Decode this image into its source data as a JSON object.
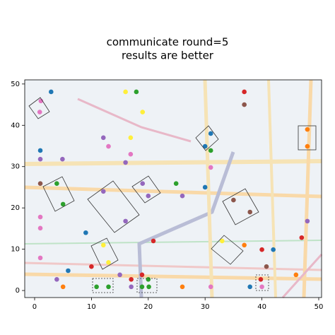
{
  "chart_data": {
    "type": "scatter",
    "title": [
      "communicate round=5",
      "results are better"
    ],
    "x": [
      1.1,
      0.9,
      2.9,
      16.0,
      17.9,
      19.0,
      36.9,
      36.9,
      12.1,
      16.9,
      13.0,
      16.9,
      1.0,
      4.9,
      1.0,
      31.0,
      30.0,
      31.0,
      48.0,
      48.0,
      16.0,
      31.0,
      1.0,
      3.9,
      5.0,
      12.1,
      19.0,
      20.0,
      24.9,
      26.0,
      30.0,
      35.0,
      37.9,
      1.0,
      1.0,
      16.0,
      9.0,
      48.0,
      47.0,
      12.1,
      20.9,
      33.0,
      36.9,
      40.0,
      42.0,
      1.0,
      10.0,
      13.0,
      5.9,
      40.8,
      3.9,
      15.0,
      18.9,
      20.0,
      17.0,
      46.0,
      39.8,
      5.0,
      10.9,
      13.0,
      17.0,
      18.9,
      20.1,
      26.0,
      31.0,
      37.9,
      40.0
    ],
    "values": [
      45.9,
      43.2,
      48.1,
      48.1,
      48.1,
      43.2,
      48.1,
      45.0,
      37.0,
      37.0,
      34.9,
      33.0,
      33.9,
      31.8,
      31.8,
      38.0,
      34.9,
      33.9,
      39.0,
      34.9,
      31.0,
      29.8,
      25.9,
      25.9,
      20.9,
      24.0,
      25.9,
      22.9,
      25.9,
      22.9,
      25.0,
      21.9,
      19.0,
      17.8,
      15.1,
      16.8,
      14.0,
      16.8,
      12.8,
      11.0,
      12.0,
      12.0,
      11.0,
      9.9,
      9.9,
      7.9,
      5.8,
      6.8,
      4.8,
      5.8,
      2.7,
      3.8,
      3.8,
      2.7,
      2.7,
      3.8,
      2.7,
      0.9,
      0.9,
      0.9,
      0.9,
      0.9,
      0.9,
      0.9,
      0.9,
      0.9,
      0.9
    ],
    "colors": [
      "#e377c2",
      "#e377c2",
      "#1f77b4",
      "#ffef3a",
      "#2ca02c",
      "#ffef3a",
      "#d62728",
      "#8c564b",
      "#9467bd",
      "#ffef3a",
      "#e377c2",
      "#e377c2",
      "#1f77b4",
      "#9467bd",
      "#9467bd",
      "#1f77b4",
      "#1f77b4",
      "#2ca02c",
      "#ff7f0e",
      "#ff7f0e",
      "#9467bd",
      "#e377c2",
      "#8c564b",
      "#2ca02c",
      "#2ca02c",
      "#9467bd",
      "#9467bd",
      "#9467bd",
      "#2ca02c",
      "#9467bd",
      "#1f77b4",
      "#8c564b",
      "#8c564b",
      "#e377c2",
      "#e377c2",
      "#9467bd",
      "#1f77b4",
      "#9467bd",
      "#d62728",
      "#ffef3a",
      "#d62728",
      "#ffef3a",
      "#ff7f0e",
      "#d62728",
      "#1f77b4",
      "#e377c2",
      "#d62728",
      "#ffef3a",
      "#1f77b4",
      "#8c564b",
      "#9467bd",
      "#9467bd",
      "#d62728",
      "#2ca02c",
      "#d62728",
      "#ff7f0e",
      "#d62728",
      "#ff7f0e",
      "#2ca02c",
      "#2ca02c",
      "#9467bd",
      "#2ca02c",
      "#2ca02c",
      "#ff7f0e",
      "#e377c2",
      "#1f77b4",
      "#e377c2"
    ],
    "xlim": [
      -1.74,
      50.5
    ],
    "ylim": [
      -1.7,
      51
    ],
    "xticks": [
      0,
      10,
      20,
      30,
      40,
      50
    ],
    "yticks": [
      0,
      10,
      20,
      30,
      40,
      50
    ]
  }
}
